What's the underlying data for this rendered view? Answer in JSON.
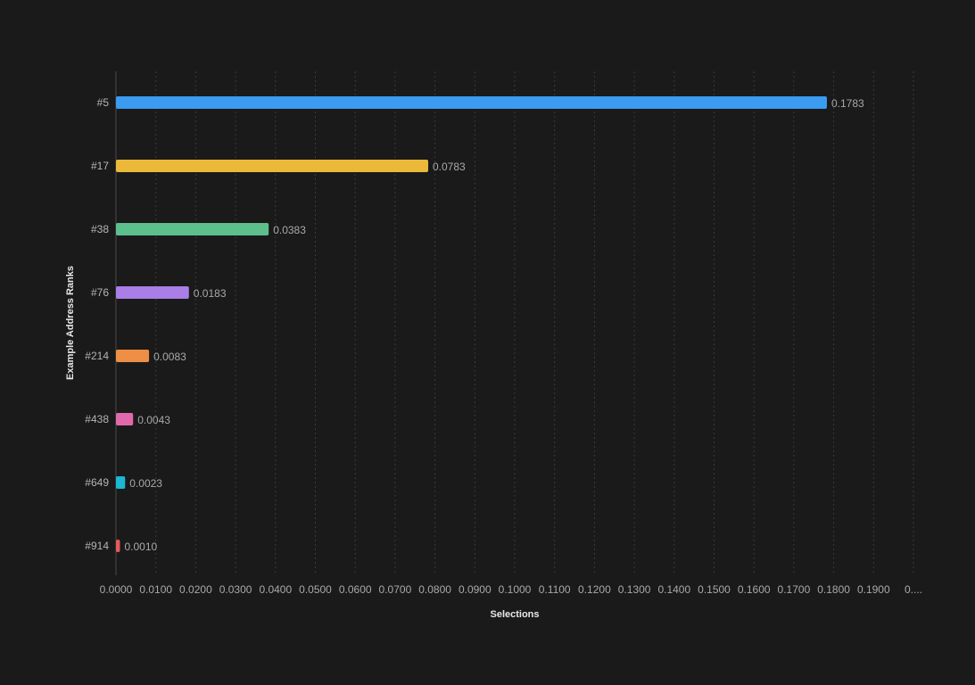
{
  "chart_data": {
    "type": "bar",
    "orientation": "horizontal",
    "title": "",
    "xlabel": "Selections",
    "ylabel": "Example Address Ranks",
    "categories": [
      "#5",
      "#17",
      "#38",
      "#76",
      "#214",
      "#438",
      "#649",
      "#914"
    ],
    "values": [
      0.1783,
      0.0783,
      0.0383,
      0.0183,
      0.0083,
      0.0043,
      0.0023,
      0.001
    ],
    "value_labels": [
      "0.1783",
      "0.0783",
      "0.0383",
      "0.0183",
      "0.0083",
      "0.0043",
      "0.0023",
      "0.0010"
    ],
    "colors": [
      "#3a9bf0",
      "#ebb93a",
      "#5dbf8c",
      "#a97ee6",
      "#ef8e45",
      "#e069ac",
      "#1ab8d2",
      "#e55a5a"
    ],
    "xlim": [
      0,
      0.2
    ],
    "x_tick_labels": [
      "0.0000",
      "0.0100",
      "0.0200",
      "0.0300",
      "0.0400",
      "0.0500",
      "0.0600",
      "0.0700",
      "0.0800",
      "0.0900",
      "0.1000",
      "0.1100",
      "0.1200",
      "0.1300",
      "0.1400",
      "0.1500",
      "0.1600",
      "0.1700",
      "0.1800",
      "0.1900",
      "0...."
    ],
    "grid": true,
    "legend": "none"
  },
  "colors": {
    "background": "#1a1a1a",
    "tick_text": "#a9a9a9",
    "axis_title": "#e8e8e8",
    "grid": "#3a3a3a"
  }
}
